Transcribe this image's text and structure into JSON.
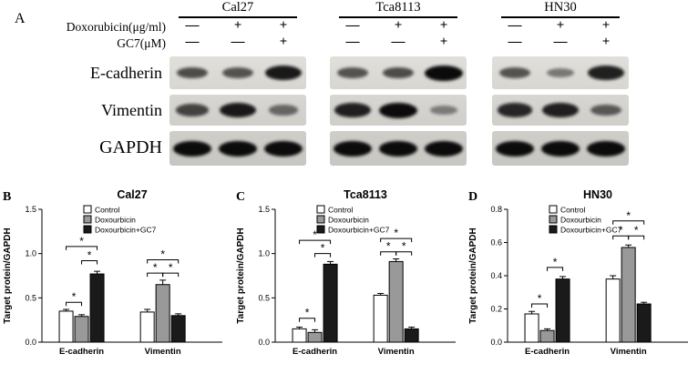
{
  "panel_a": {
    "label": "A",
    "dox_label": "Doxorubicin(μg/ml)",
    "gc7_label": "GC7(μM)",
    "dox_signs": [
      "—",
      "+",
      "+"
    ],
    "gc7_signs": [
      "—",
      "—",
      "+"
    ],
    "proteins": [
      "E-cadherin",
      "Vimentin",
      "GAPDH"
    ],
    "cell_lines": [
      {
        "name": "Cal27",
        "bands": [
          [
            0.55,
            0.5,
            0.9
          ],
          [
            0.6,
            0.9,
            0.35
          ],
          [
            1,
            1,
            1
          ]
        ]
      },
      {
        "name": "Tca8113",
        "bands": [
          [
            0.5,
            0.55,
            1.0
          ],
          [
            0.85,
            1.0,
            0.2
          ],
          [
            1,
            1,
            1
          ]
        ]
      },
      {
        "name": "HN30",
        "bands": [
          [
            0.5,
            0.25,
            0.85
          ],
          [
            0.8,
            0.85,
            0.45
          ],
          [
            1,
            1,
            1
          ]
        ]
      }
    ]
  },
  "chart_data": [
    {
      "type": "bar",
      "panel_label": "B",
      "title": "Cal27",
      "ylabel": "Target protein/GAPDH",
      "xlabel": "",
      "ylim": [
        0,
        1.5
      ],
      "yticks": [
        "0.0",
        "0.5",
        "1.0",
        "1.5"
      ],
      "categories": [
        "E-cadherin",
        "Vimentin"
      ],
      "legend_position": "top-left",
      "grid": false,
      "series": [
        {
          "name": "Control",
          "color": "#ffffff",
          "values": [
            0.35,
            0.34
          ],
          "errors": [
            0.02,
            0.03
          ]
        },
        {
          "name": "Doxourbicin",
          "color": "#999999",
          "values": [
            0.29,
            0.65
          ],
          "errors": [
            0.02,
            0.05
          ]
        },
        {
          "name": "Doxourbicin+GC7",
          "color": "#1a1a1a",
          "values": [
            0.77,
            0.3
          ],
          "errors": [
            0.03,
            0.02
          ]
        }
      ],
      "brackets": [
        {
          "group": 0,
          "a": 0,
          "b": 1,
          "y": 0.45,
          "label": "*"
        },
        {
          "group": 0,
          "a": 1,
          "b": 2,
          "y": 0.92,
          "label": "*"
        },
        {
          "group": 0,
          "a": 0,
          "b": 2,
          "y": 1.08,
          "label": "*"
        },
        {
          "group": 1,
          "a": 0,
          "b": 1,
          "y": 0.78,
          "label": "*"
        },
        {
          "group": 1,
          "a": 1,
          "b": 2,
          "y": 0.78,
          "label": "*"
        },
        {
          "group": 1,
          "a": 0,
          "b": 2,
          "y": 0.93,
          "label": "*"
        }
      ]
    },
    {
      "type": "bar",
      "panel_label": "C",
      "title": "Tca8113",
      "ylabel": "Target protein/GAPDH",
      "xlabel": "",
      "ylim": [
        0,
        1.5
      ],
      "yticks": [
        "0.0",
        "0.5",
        "1.0",
        "1.5"
      ],
      "categories": [
        "E-cadherin",
        "Vimentin"
      ],
      "legend_position": "top-left",
      "grid": false,
      "series": [
        {
          "name": "Control",
          "color": "#ffffff",
          "values": [
            0.15,
            0.53
          ],
          "errors": [
            0.02,
            0.02
          ]
        },
        {
          "name": "Doxourbicin",
          "color": "#999999",
          "values": [
            0.11,
            0.91
          ],
          "errors": [
            0.03,
            0.03
          ]
        },
        {
          "name": "Doxourbicin+GC7",
          "color": "#1a1a1a",
          "values": [
            0.88,
            0.15
          ],
          "errors": [
            0.03,
            0.02
          ]
        }
      ],
      "brackets": [
        {
          "group": 0,
          "a": 0,
          "b": 1,
          "y": 0.27,
          "label": "*"
        },
        {
          "group": 0,
          "a": 1,
          "b": 2,
          "y": 1.0,
          "label": "*"
        },
        {
          "group": 0,
          "a": 0,
          "b": 2,
          "y": 1.15,
          "label": "*"
        },
        {
          "group": 1,
          "a": 0,
          "b": 1,
          "y": 1.02,
          "label": "*"
        },
        {
          "group": 1,
          "a": 1,
          "b": 2,
          "y": 1.02,
          "label": "*"
        },
        {
          "group": 1,
          "a": 0,
          "b": 2,
          "y": 1.17,
          "label": "*"
        }
      ]
    },
    {
      "type": "bar",
      "panel_label": "D",
      "title": "HN30",
      "ylabel": "Target protein/GAPDH",
      "xlabel": "",
      "ylim": [
        0,
        0.8
      ],
      "yticks": [
        "0.0",
        "0.2",
        "0.4",
        "0.6",
        "0.8"
      ],
      "categories": [
        "E-cadherin",
        "Vimentin"
      ],
      "legend_position": "top-left",
      "grid": false,
      "series": [
        {
          "name": "Control",
          "color": "#ffffff",
          "values": [
            0.17,
            0.38
          ],
          "errors": [
            0.015,
            0.02
          ]
        },
        {
          "name": "Doxourbicin",
          "color": "#999999",
          "values": [
            0.07,
            0.57
          ],
          "errors": [
            0.01,
            0.015
          ]
        },
        {
          "name": "Doxourbicin+GC7",
          "color": "#1a1a1a",
          "values": [
            0.38,
            0.23
          ],
          "errors": [
            0.015,
            0.01
          ]
        }
      ],
      "brackets": [
        {
          "group": 0,
          "a": 0,
          "b": 1,
          "y": 0.23,
          "label": "*"
        },
        {
          "group": 0,
          "a": 1,
          "b": 2,
          "y": 0.45,
          "label": "*"
        },
        {
          "group": 1,
          "a": 0,
          "b": 1,
          "y": 0.64,
          "label": "*"
        },
        {
          "group": 1,
          "a": 1,
          "b": 2,
          "y": 0.64,
          "label": "*"
        },
        {
          "group": 1,
          "a": 0,
          "b": 2,
          "y": 0.73,
          "label": "*"
        }
      ]
    }
  ]
}
